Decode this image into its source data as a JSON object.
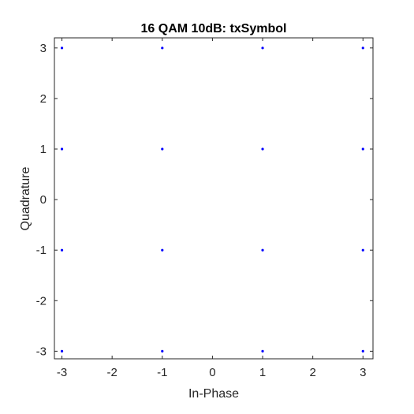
{
  "chart_data": {
    "type": "scatter",
    "title": "16 QAM 10dB: txSymbol",
    "xlabel": "In-Phase",
    "ylabel": "Quadrature",
    "xlim": [
      -3.15,
      3.2
    ],
    "ylim": [
      -3.15,
      3.2
    ],
    "xticks": [
      -3,
      -2,
      -1,
      0,
      1,
      2,
      3
    ],
    "yticks": [
      -3,
      -2,
      -1,
      0,
      1,
      2,
      3
    ],
    "xtick_labels": [
      "-3",
      "-2",
      "-1",
      "0",
      "1",
      "2",
      "3"
    ],
    "ytick_labels": [
      "-3",
      "-2",
      "-1",
      "0",
      "1",
      "2",
      "3"
    ],
    "grid": false,
    "marker_color": "#0000ff",
    "axis_color": "#262626",
    "series": [
      {
        "points": [
          {
            "x": -3,
            "y": 3
          },
          {
            "x": -1,
            "y": 3
          },
          {
            "x": 1,
            "y": 3
          },
          {
            "x": 3,
            "y": 3
          },
          {
            "x": -3,
            "y": 1
          },
          {
            "x": -1,
            "y": 1
          },
          {
            "x": 1,
            "y": 1
          },
          {
            "x": 3,
            "y": 1
          },
          {
            "x": -3,
            "y": -1
          },
          {
            "x": -1,
            "y": -1
          },
          {
            "x": 1,
            "y": -1
          },
          {
            "x": 3,
            "y": -1
          },
          {
            "x": -3,
            "y": -3
          },
          {
            "x": -1,
            "y": -3
          },
          {
            "x": 1,
            "y": -3
          },
          {
            "x": 3,
            "y": -3
          }
        ]
      }
    ]
  }
}
